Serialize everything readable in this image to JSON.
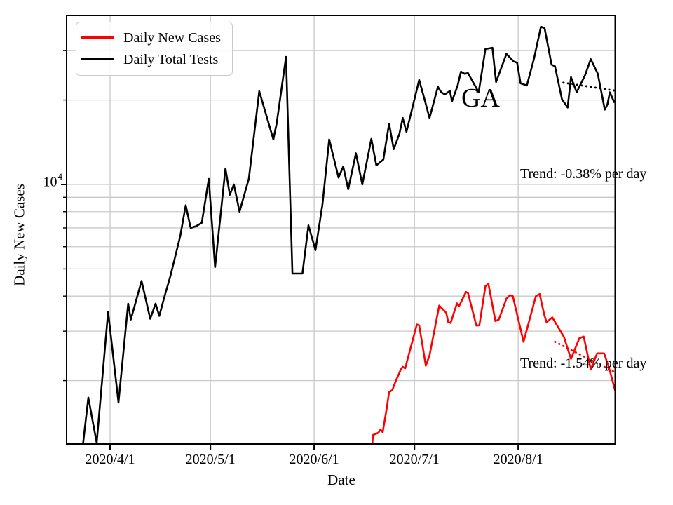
{
  "axes": {
    "xlabel": "Date",
    "ylabel": "Daily New Cases",
    "y_tick": {
      "base": "10",
      "exponent": "4",
      "value": 10000
    },
    "x_ticks": [
      {
        "day": 13,
        "label": "2020/4/1"
      },
      {
        "day": 43,
        "label": "2020/5/1"
      },
      {
        "day": 74,
        "label": "2020/6/1"
      },
      {
        "day": 104,
        "label": "2020/7/1"
      },
      {
        "day": 135,
        "label": "2020/8/1"
      }
    ],
    "y_gridline_values": [
      2000,
      3000,
      4000,
      5000,
      6000,
      7000,
      8000,
      9000,
      10000,
      20000,
      30000
    ],
    "grid_color": "#c9c9c9",
    "spine_color": "#000000"
  },
  "legend": {
    "items": [
      {
        "label": "Daily New Cases",
        "color": "#ff0000"
      },
      {
        "label": "Daily Total Tests",
        "color": "#000000"
      }
    ]
  },
  "annotations": {
    "state": "GA",
    "tests_trend": "Trend: -0.38% per day",
    "cases_trend": "Trend: -1.54% per day"
  },
  "chart_data": {
    "type": "line",
    "title": "",
    "xlabel": "Date",
    "ylabel": "Daily New Cases",
    "y_scale": "log",
    "y_domain": [
      1189,
      41500
    ],
    "x_unit": "days since 2020/3/19",
    "x_domain": [
      0,
      164
    ],
    "grid": true,
    "legend_position": "upper left",
    "series": [
      {
        "name": "Daily Total Tests",
        "color": "#000000",
        "style": "solid",
        "points": [
          [
            4.6,
            1100
          ],
          [
            6.5,
            1740
          ],
          [
            9,
            1200
          ],
          [
            12.4,
            3520
          ],
          [
            15.5,
            1670
          ],
          [
            18.4,
            3760
          ],
          [
            19.2,
            3300
          ],
          [
            22.4,
            4530
          ],
          [
            25,
            3320
          ],
          [
            26.6,
            3760
          ],
          [
            27.7,
            3400
          ],
          [
            29.3,
            4000
          ],
          [
            31,
            4700
          ],
          [
            34,
            6560
          ],
          [
            35.6,
            8430
          ],
          [
            37.1,
            7000
          ],
          [
            38.7,
            7100
          ],
          [
            40.4,
            7300
          ],
          [
            42.5,
            10470
          ],
          [
            44.4,
            5080
          ],
          [
            47.5,
            11400
          ],
          [
            48.8,
            9190
          ],
          [
            50,
            10000
          ],
          [
            51.7,
            8000
          ],
          [
            54.5,
            10500
          ],
          [
            57.6,
            21500
          ],
          [
            61.8,
            14470
          ],
          [
            62.8,
            16480
          ],
          [
            65.6,
            28500
          ],
          [
            67.5,
            4815
          ],
          [
            70.5,
            4815
          ],
          [
            72.3,
            7150
          ],
          [
            74.4,
            5830
          ],
          [
            76.5,
            8500
          ],
          [
            78.5,
            14470
          ],
          [
            81.3,
            10580
          ],
          [
            82.7,
            11590
          ],
          [
            84.2,
            9610
          ],
          [
            86.5,
            12920
          ],
          [
            88.4,
            10000
          ],
          [
            91.1,
            14550
          ],
          [
            92.6,
            11700
          ],
          [
            94.7,
            12270
          ],
          [
            96.4,
            16480
          ],
          [
            97.8,
            13360
          ],
          [
            99.5,
            15140
          ],
          [
            100.5,
            17260
          ],
          [
            101.6,
            15400
          ],
          [
            105.4,
            23580
          ],
          [
            107.4,
            19340
          ],
          [
            108.5,
            17260
          ],
          [
            111,
            22280
          ],
          [
            112,
            21300
          ],
          [
            113.1,
            20940
          ],
          [
            114.6,
            21550
          ],
          [
            115.2,
            19780
          ],
          [
            116.9,
            22530
          ],
          [
            117.9,
            25250
          ],
          [
            119,
            24800
          ],
          [
            120,
            24950
          ],
          [
            123.2,
            21300
          ],
          [
            125.2,
            30400
          ],
          [
            127.3,
            30700
          ],
          [
            128.4,
            23190
          ],
          [
            131.5,
            29200
          ],
          [
            133.6,
            27480
          ],
          [
            134.7,
            27150
          ],
          [
            135.7,
            22930
          ],
          [
            137.6,
            22530
          ],
          [
            139.7,
            28000
          ],
          [
            141.8,
            36500
          ],
          [
            142.9,
            36100
          ],
          [
            145,
            26730
          ],
          [
            146,
            26400
          ],
          [
            148.1,
            20120
          ],
          [
            149.8,
            18800
          ],
          [
            150.8,
            24120
          ],
          [
            152.5,
            21300
          ],
          [
            155,
            24540
          ],
          [
            156.7,
            27980
          ],
          [
            158.8,
            24820
          ],
          [
            160.9,
            18480
          ],
          [
            161.7,
            19300
          ],
          [
            162.4,
            21300
          ],
          [
            163.8,
            19560
          ]
        ]
      },
      {
        "name": "Daily New Cases",
        "color": "#ff0000",
        "style": "solid",
        "points": [
          [
            91.2,
            1100
          ],
          [
            91.6,
            1280
          ],
          [
            93.2,
            1303
          ],
          [
            93.8,
            1340
          ],
          [
            94.5,
            1310
          ],
          [
            95.7,
            1590
          ],
          [
            96.4,
            1820
          ],
          [
            97.4,
            1850
          ],
          [
            98,
            1940
          ],
          [
            99.9,
            2190
          ],
          [
            100.5,
            2240
          ],
          [
            101.2,
            2210
          ],
          [
            104.7,
            3170
          ],
          [
            105.4,
            3150
          ],
          [
            107.4,
            2260
          ],
          [
            108.5,
            2460
          ],
          [
            111.4,
            3700
          ],
          [
            113.5,
            3490
          ],
          [
            114.1,
            3230
          ],
          [
            114.8,
            3210
          ],
          [
            116.7,
            3770
          ],
          [
            117.3,
            3680
          ],
          [
            119.4,
            4140
          ],
          [
            120,
            4100
          ],
          [
            122.5,
            3140
          ],
          [
            123.4,
            3150
          ],
          [
            125.2,
            4340
          ],
          [
            126.1,
            4420
          ],
          [
            128.2,
            3260
          ],
          [
            129.2,
            3300
          ],
          [
            131.5,
            3920
          ],
          [
            132.6,
            4030
          ],
          [
            133.4,
            4000
          ],
          [
            136.6,
            2750
          ],
          [
            140.3,
            4000
          ],
          [
            141.4,
            4070
          ],
          [
            142.9,
            3400
          ],
          [
            143.5,
            3230
          ],
          [
            145.2,
            3360
          ],
          [
            148.7,
            2860
          ],
          [
            149.8,
            2600
          ],
          [
            150.8,
            2390
          ],
          [
            153.3,
            2830
          ],
          [
            154.6,
            2870
          ],
          [
            156.7,
            2190
          ],
          [
            158.6,
            2500
          ],
          [
            160.7,
            2500
          ],
          [
            162.4,
            2170
          ],
          [
            164,
            1840
          ]
        ]
      },
      {
        "name": "Tests trend (-0.38%/day)",
        "color": "#000000",
        "style": "dotted",
        "points": [
          [
            148.5,
            23050
          ],
          [
            164,
            21600
          ]
        ]
      },
      {
        "name": "Cases trend (-1.54%/day)",
        "color": "#ff0000",
        "style": "dotted",
        "points": [
          [
            146,
            2750
          ],
          [
            164,
            2140
          ]
        ]
      }
    ]
  }
}
